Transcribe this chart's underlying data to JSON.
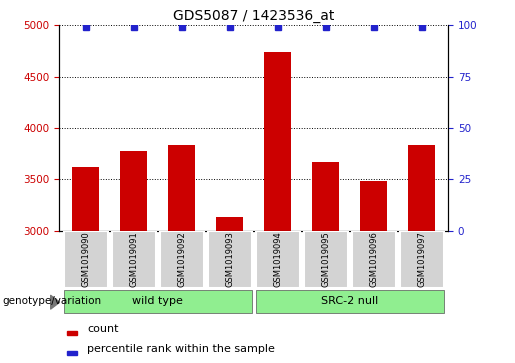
{
  "title": "GDS5087 / 1423536_at",
  "samples": [
    "GSM1019090",
    "GSM1019091",
    "GSM1019092",
    "GSM1019093",
    "GSM1019094",
    "GSM1019095",
    "GSM1019096",
    "GSM1019097"
  ],
  "counts": [
    3620,
    3780,
    3830,
    3130,
    4740,
    3670,
    3480,
    3830
  ],
  "percentiles": [
    99,
    99,
    99,
    99,
    99,
    99,
    99,
    99
  ],
  "ylim_left": [
    3000,
    5000
  ],
  "ylim_right": [
    0,
    100
  ],
  "yticks_left": [
    3000,
    3500,
    4000,
    4500,
    5000
  ],
  "yticks_right": [
    0,
    25,
    50,
    75,
    100
  ],
  "bar_color": "#cc0000",
  "dot_color": "#2222cc",
  "wt_group_color": "#90ee90",
  "src_group_color": "#90ee90",
  "label_box_color": "#d3d3d3",
  "groups": [
    {
      "label": "wild type",
      "start": 0,
      "end": 3
    },
    {
      "label": "SRC-2 null",
      "start": 4,
      "end": 7
    }
  ],
  "genotype_label": "genotype/variation",
  "legend_count_label": "count",
  "legend_percentile_label": "percentile rank within the sample"
}
